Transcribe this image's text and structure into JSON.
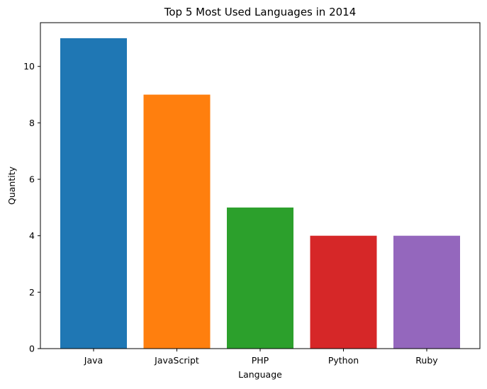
{
  "chart_data": {
    "type": "bar",
    "title": "Top 5 Most Used Languages in 2014",
    "xlabel": "Language",
    "ylabel": "Quantity",
    "categories": [
      "Java",
      "JavaScript",
      "PHP",
      "Python",
      "Ruby"
    ],
    "values": [
      11,
      9,
      5,
      4,
      4
    ],
    "colors": [
      "#1f77b4",
      "#ff7f0e",
      "#2ca02c",
      "#d62728",
      "#9467bd"
    ],
    "ylim": [
      0,
      11.55
    ],
    "yticks": [
      0,
      2,
      4,
      6,
      8,
      10
    ],
    "grid": false,
    "legend": "none"
  }
}
